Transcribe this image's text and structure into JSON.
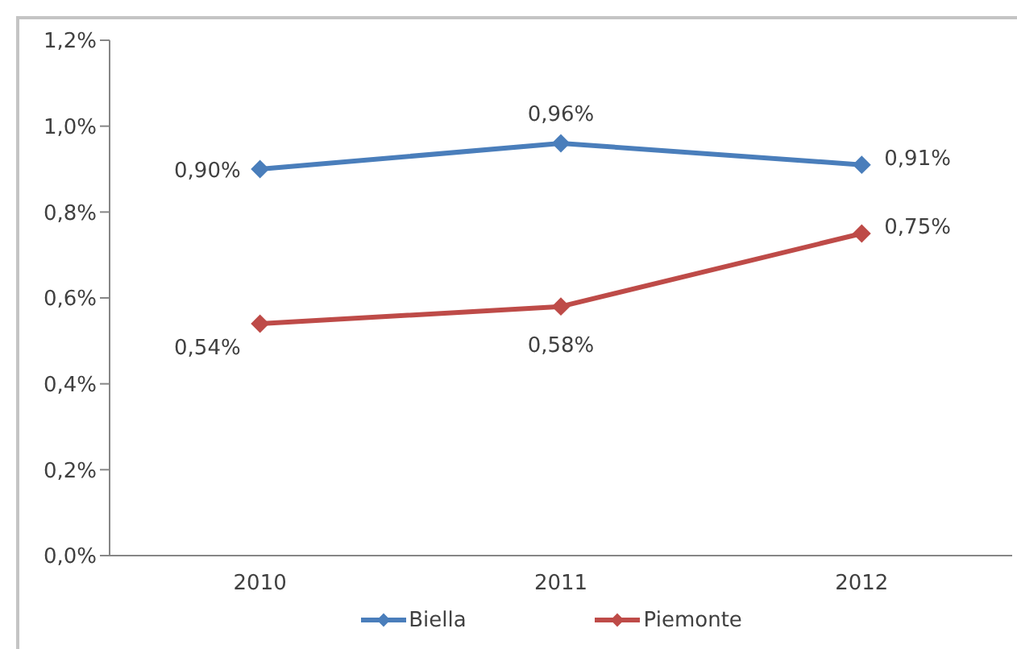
{
  "chart_data": {
    "type": "line",
    "categories": [
      "2010",
      "2011",
      "2012"
    ],
    "series": [
      {
        "name": "Biella",
        "color": "#4a7ebb",
        "values": [
          0.9,
          0.96,
          0.91
        ],
        "value_labels": [
          "0,90%",
          "0,96%",
          "0,91%"
        ]
      },
      {
        "name": "Piemonte",
        "color": "#be4b48",
        "values": [
          0.54,
          0.58,
          0.75
        ],
        "value_labels": [
          "0,54%",
          "0,58%",
          "0,75%"
        ]
      }
    ],
    "ylim": [
      0,
      1.2
    ],
    "yticks": [
      {
        "value": 0,
        "label": "0,0%"
      },
      {
        "value": 0.2,
        "label": "0,2%"
      },
      {
        "value": 0.4,
        "label": "0,4%"
      },
      {
        "value": 0.6,
        "label": "0,6%"
      },
      {
        "value": 0.8,
        "label": "0,8%"
      },
      {
        "value": 1.0,
        "label": "1,0%"
      },
      {
        "value": 1.2,
        "label": "1,2%"
      }
    ],
    "grid": false,
    "legend": "bottom",
    "marker": "diamond",
    "line_style": "solid"
  }
}
